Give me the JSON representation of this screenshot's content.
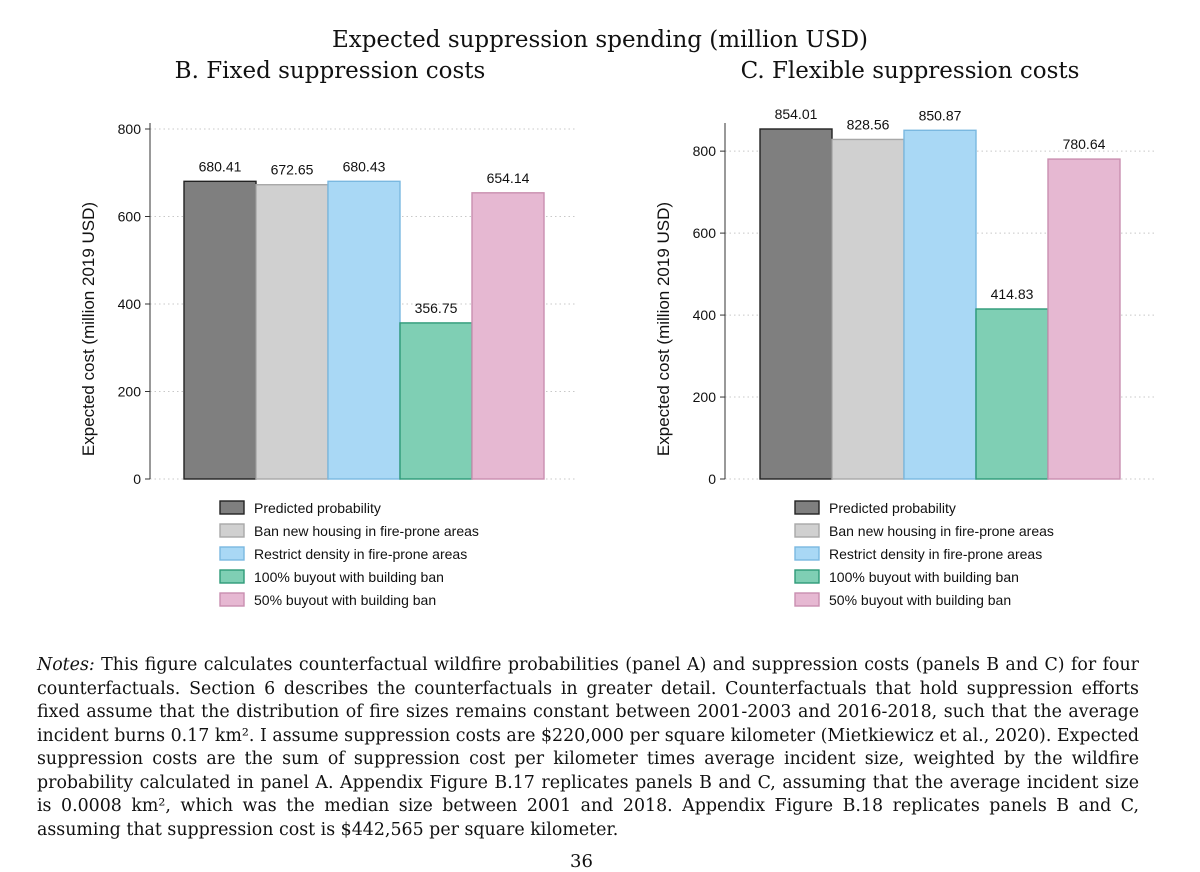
{
  "main_title": "Expected suppression spending (million USD)",
  "panel_b_title": "B. Fixed suppression costs",
  "panel_c_title": "C. Flexible suppression costs",
  "colors": {
    "predicted": "#7f7f7f",
    "ban_housing": "#d0d0d0",
    "restrict_density": "#a9d8f5",
    "buyout_100": "#7fcfb4",
    "buyout_50": "#e6b8d2",
    "predicted_stroke": "#222222",
    "ban_housing_stroke": "#a8a8a8",
    "restrict_density_stroke": "#7ab8e0",
    "buyout_100_stroke": "#2e9a78",
    "buyout_50_stroke": "#c98fb0"
  },
  "chart_data": [
    {
      "type": "bar",
      "title": "B. Fixed suppression costs",
      "ylabel": "Expected cost (million 2019 USD)",
      "ylim": [
        0,
        800
      ],
      "yticks": [
        0,
        200,
        400,
        600,
        800
      ],
      "grid": true,
      "categories": [
        "Predicted probability",
        "Ban new housing in fire-prone areas",
        "Restrict density in fire-prone areas",
        "100% buyout with building ban",
        "50% buyout with building ban"
      ],
      "values": [
        680.41,
        672.65,
        680.43,
        356.75,
        654.14
      ],
      "labels": [
        "680.41",
        "672.65",
        "680.43",
        "356.75",
        "654.14"
      ],
      "legend": "bottom"
    },
    {
      "type": "bar",
      "title": "C. Flexible suppression costs",
      "ylabel": "Expected cost (million 2019 USD)",
      "ylim": [
        0,
        854.01
      ],
      "yticks": [
        0,
        200,
        400,
        600,
        800
      ],
      "grid": true,
      "categories": [
        "Predicted probability",
        "Ban new housing in fire-prone areas",
        "Restrict density in fire-prone areas",
        "100% buyout with building ban",
        "50% buyout with building ban"
      ],
      "values": [
        854.01,
        828.56,
        850.87,
        414.83,
        780.64
      ],
      "labels": [
        "854.01",
        "828.56",
        "850.87",
        "414.83",
        "780.64"
      ],
      "legend": "bottom"
    }
  ],
  "notes": {
    "label": "Notes:",
    "text": " This figure calculates counterfactual wildfire probabilities (panel A) and suppression costs (panels B and C) for four counterfactuals. Section 6 describes the counterfactuals in greater detail. Counterfactuals that hold suppression efforts fixed assume that the distribution of fire sizes remains constant between 2001-2003 and 2016-2018, such that the average incident burns 0.17 km². I assume suppression costs are $220,000 per square kilometer (Mietkiewicz et al., 2020). Expected suppression costs are the sum of suppression cost per kilometer times average incident size, weighted by the wildfire probability calculated in panel A. Appendix Figure B.17 replicates panels B and C, assuming that the average incident size is 0.0008 km², which was the median size between 2001 and 2018. Appendix Figure B.18 replicates panels B and C, assuming that suppression cost is $442,565 per square kilometer."
  },
  "page_number": "36"
}
